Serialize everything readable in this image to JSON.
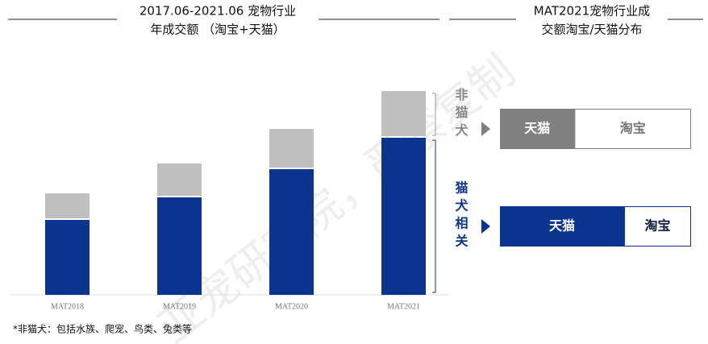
{
  "watermark": "亚宠研究院，严禁复制",
  "footnote": "*非猫犬：包括水族、爬宠、鸟类、兔类等",
  "chart_data": [
    {
      "type": "bar",
      "stacked": true,
      "orientation": "vertical",
      "title": [
        "2017.06-2021.06 宠物行业",
        "年成交额 （淘宝+天猫）"
      ],
      "categories": [
        "MAT2018",
        "MAT2019",
        "MAT2020",
        "MAT2021"
      ],
      "series": [
        {
          "name": "猫犬相关",
          "color": "#0a3490",
          "values": [
            93,
            121,
            156,
            195
          ]
        },
        {
          "name": "非猫犬",
          "color": "#bfbfbf",
          "values": [
            33,
            42,
            50,
            58
          ]
        }
      ],
      "ylim": [
        0,
        260
      ]
    },
    {
      "type": "bar",
      "stacked": true,
      "orientation": "horizontal",
      "title": [
        "MAT2021宠物行业成",
        "交额淘宝/天猫分布"
      ],
      "categories": [
        null,
        null
      ],
      "series": [
        {
          "name": "天猫",
          "values": [
            39,
            65
          ]
        },
        {
          "name": "淘宝",
          "values": [
            61,
            35
          ]
        }
      ],
      "row_colors": [
        "#808080",
        "#0a3490"
      ],
      "xlim": [
        0,
        100
      ]
    }
  ]
}
